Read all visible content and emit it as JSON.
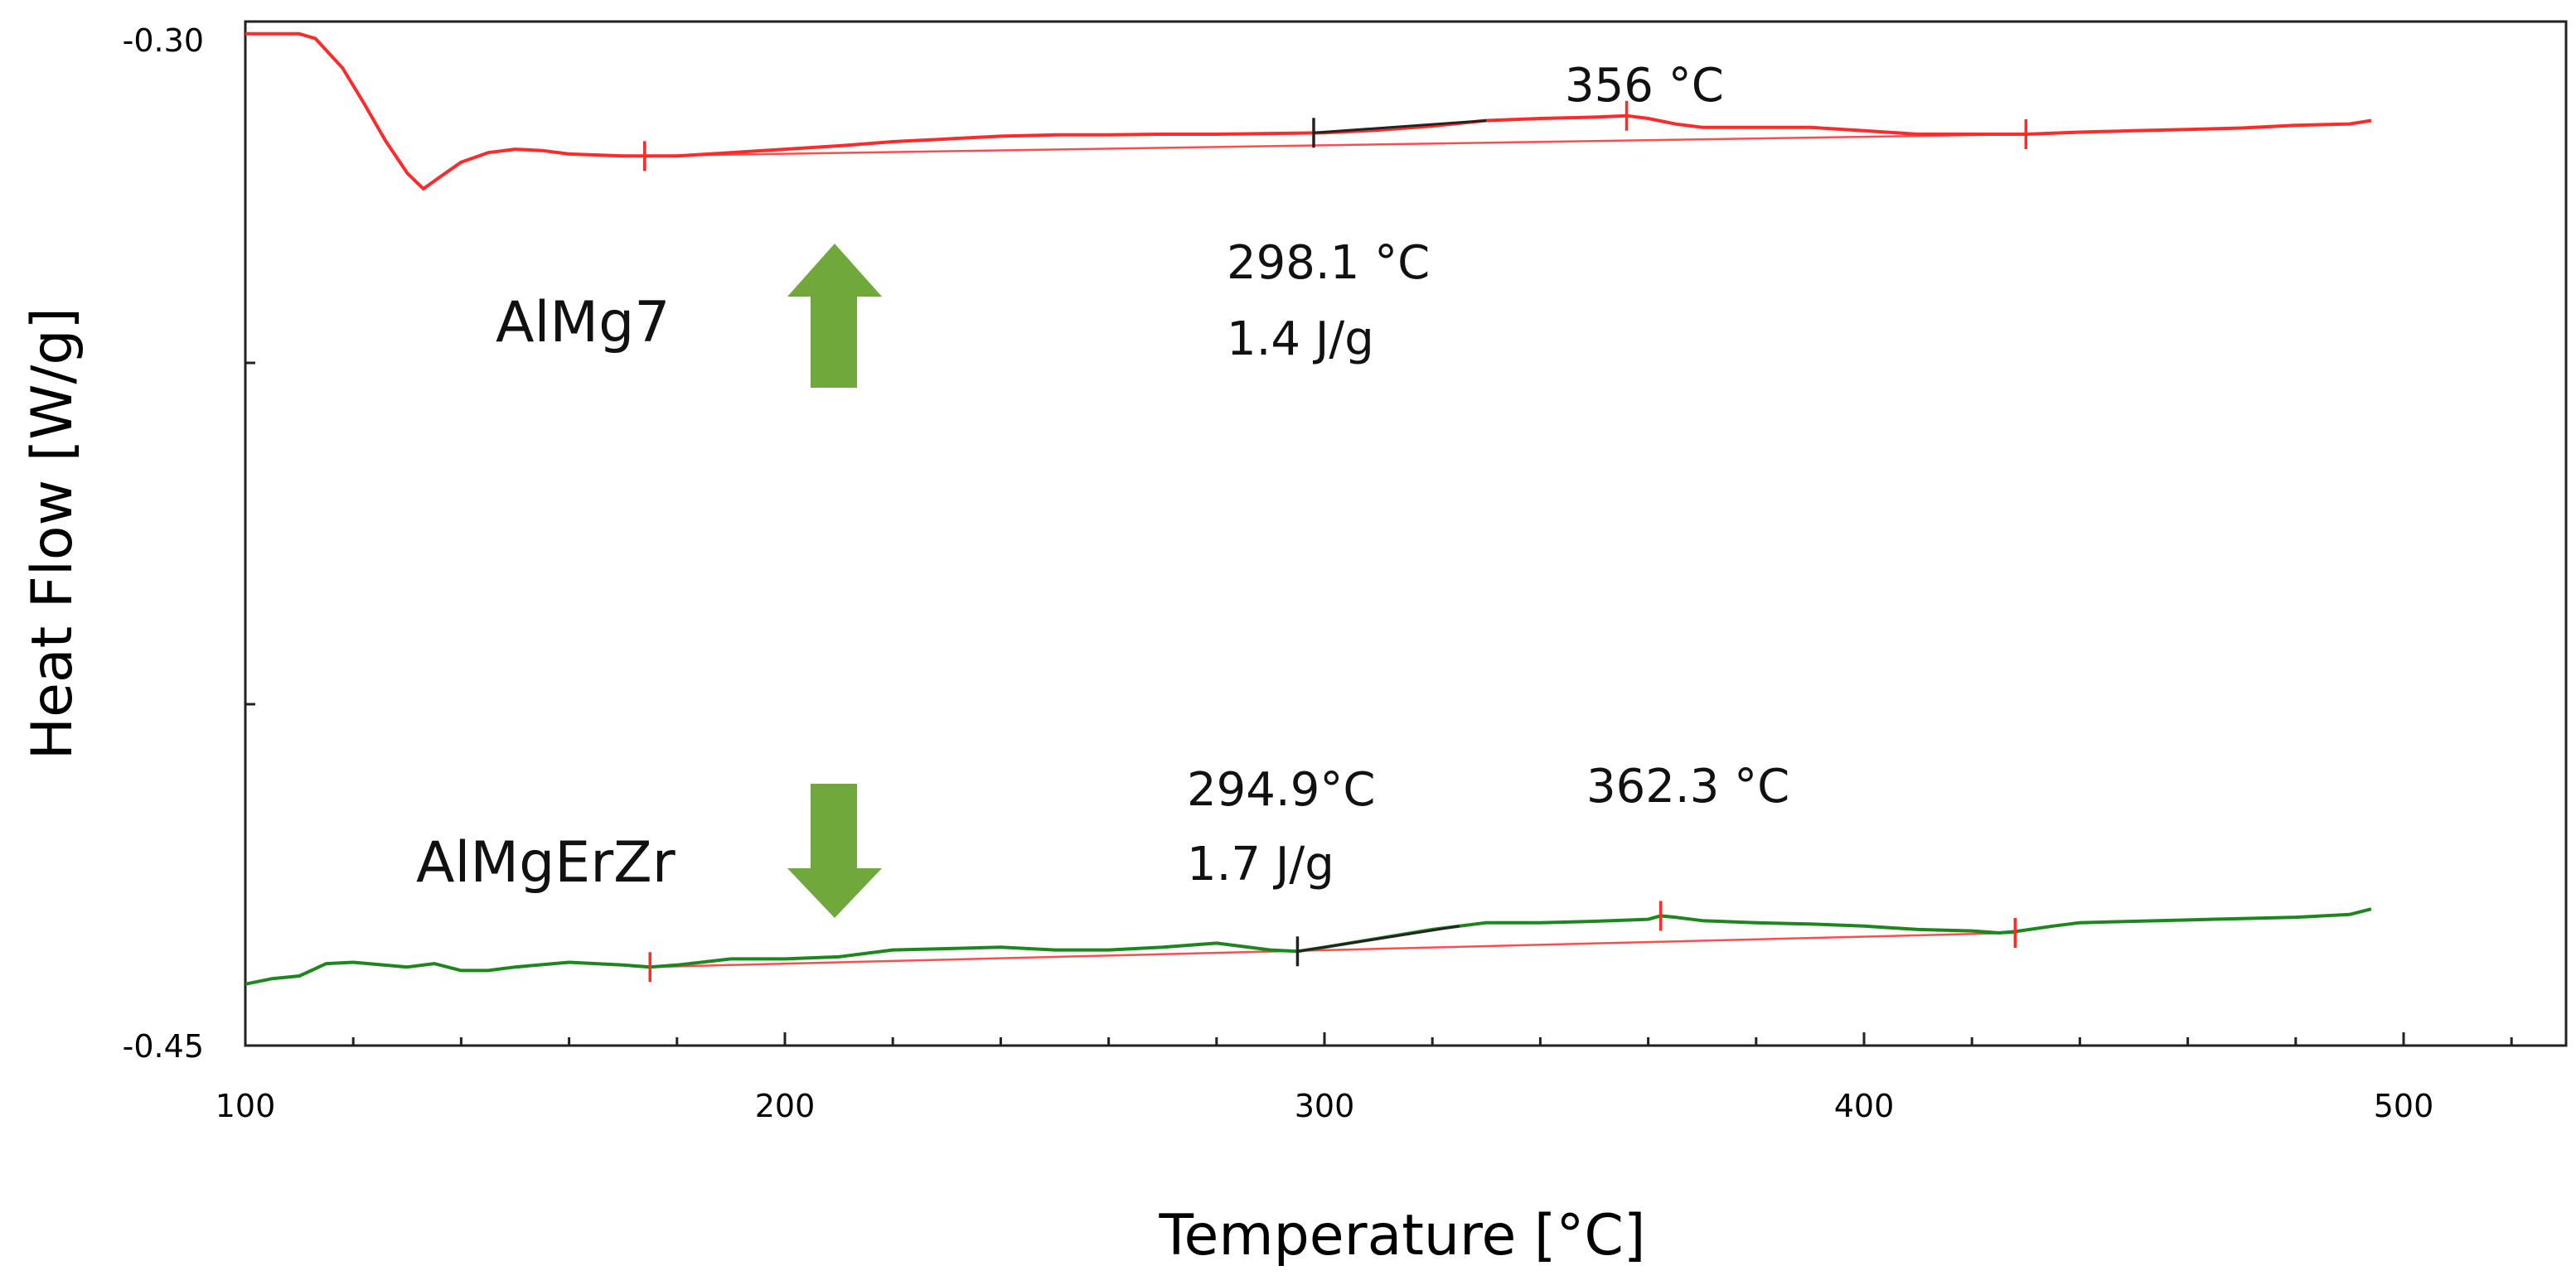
{
  "chart_data": {
    "type": "line",
    "xlabel": "Temperature [°C]",
    "ylabel": "Heat Flow [W/g]",
    "xlim": [
      100,
      530
    ],
    "ylim": [
      -0.45,
      -0.3
    ],
    "x_ticks": [
      "100",
      "200",
      "300",
      "400",
      "500"
    ],
    "y_ticks": [
      "-0.30",
      "-0.45"
    ],
    "grid": false,
    "series": [
      {
        "name": "AlMg7",
        "color": "#ff2a2a",
        "x": [
          100,
          110,
          113,
          118,
          122,
          126,
          130,
          133,
          136,
          140,
          145,
          150,
          155,
          160,
          170,
          180,
          190,
          200,
          210,
          220,
          230,
          240,
          250,
          260,
          270,
          280,
          290,
          300,
          310,
          320,
          330,
          340,
          350,
          356,
          360,
          365,
          370,
          380,
          390,
          400,
          410,
          420,
          430,
          440,
          450,
          460,
          470,
          480,
          490,
          494
        ],
        "y": [
          -0.3018,
          -0.3018,
          -0.3025,
          -0.3068,
          -0.312,
          -0.3175,
          -0.3222,
          -0.3245,
          -0.3228,
          -0.3206,
          -0.3192,
          -0.3187,
          -0.3189,
          -0.3194,
          -0.3197,
          -0.3197,
          -0.3192,
          -0.3187,
          -0.3182,
          -0.3176,
          -0.3172,
          -0.3168,
          -0.3166,
          -0.3166,
          -0.3165,
          -0.3165,
          -0.3164,
          -0.3163,
          -0.3159,
          -0.3153,
          -0.3145,
          -0.3142,
          -0.314,
          -0.3138,
          -0.3142,
          -0.315,
          -0.3155,
          -0.3155,
          -0.3155,
          -0.316,
          -0.3165,
          -0.3165,
          -0.3165,
          -0.3162,
          -0.316,
          -0.3158,
          -0.3156,
          -0.3152,
          -0.315,
          -0.3145
        ]
      },
      {
        "name": "AlMgErZr",
        "color": "#1e861e",
        "x": [
          100,
          105,
          110,
          115,
          120,
          130,
          135,
          140,
          145,
          150,
          160,
          170,
          175,
          180,
          190,
          200,
          210,
          220,
          230,
          240,
          250,
          260,
          270,
          280,
          285,
          290,
          295,
          300,
          310,
          320,
          330,
          340,
          350,
          360,
          362.3,
          365,
          370,
          380,
          390,
          400,
          410,
          420,
          425,
          428,
          435,
          440,
          450,
          460,
          470,
          480,
          490,
          494
        ],
        "y": [
          -0.441,
          -0.4402,
          -0.4398,
          -0.438,
          -0.4378,
          -0.4385,
          -0.438,
          -0.439,
          -0.439,
          -0.4385,
          -0.4378,
          -0.4382,
          -0.4385,
          -0.4382,
          -0.4373,
          -0.4373,
          -0.437,
          -0.436,
          -0.4358,
          -0.4356,
          -0.436,
          -0.436,
          -0.4356,
          -0.435,
          -0.4355,
          -0.436,
          -0.4362,
          -0.4356,
          -0.4343,
          -0.433,
          -0.432,
          -0.432,
          -0.4318,
          -0.4315,
          -0.431,
          -0.4312,
          -0.4317,
          -0.432,
          -0.4322,
          -0.4325,
          -0.433,
          -0.4332,
          -0.4335,
          -0.4333,
          -0.4325,
          -0.432,
          -0.4318,
          -0.4316,
          -0.4314,
          -0.4312,
          -0.4308,
          -0.43
        ]
      }
    ],
    "baselines": [
      {
        "color": "#ff4d4d",
        "x": [
          174,
          430
        ],
        "y": [
          -0.3197,
          -0.3165
        ]
      },
      {
        "color": "#ff4d4d",
        "x": [
          175,
          428
        ],
        "y": [
          -0.4385,
          -0.4335
        ]
      }
    ],
    "tangents": [
      {
        "color": "#222222",
        "x": [
          298,
          330
        ],
        "y": [
          -0.3163,
          -0.3145
        ]
      },
      {
        "color": "#222222",
        "x": [
          295,
          325
        ],
        "y": [
          -0.4362,
          -0.4325
        ]
      }
    ],
    "markers": [
      {
        "color": "#ff2a2a",
        "x": 174,
        "y": -0.3197
      },
      {
        "color": "#222222",
        "x": 298,
        "y": -0.3163
      },
      {
        "color": "#ff2a2a",
        "x": 356,
        "y": -0.3138
      },
      {
        "color": "#ff2a2a",
        "x": 430,
        "y": -0.3165
      },
      {
        "color": "#ff2a2a",
        "x": 175,
        "y": -0.4385
      },
      {
        "color": "#222222",
        "x": 295,
        "y": -0.4362
      },
      {
        "color": "#ff2a2a",
        "x": 362.3,
        "y": -0.431
      },
      {
        "color": "#ff2a2a",
        "x": 428,
        "y": -0.4335
      }
    ],
    "annotations": {
      "peak_almg7": "356 °C",
      "onset_almg7_temp": "298.1 °C",
      "onset_almg7_energy": "1.4 J/g",
      "onset_almgerzr_temp": "294.9°C",
      "onset_almgerzr_energy": "1.7 J/g",
      "peak_almgerzr": "362.3 °C"
    },
    "series_labels": {
      "almg7": "AlMg7",
      "almgerzr": "AlMgErZr"
    },
    "arrows": [
      {
        "direction": "up",
        "color": "#70a83c"
      },
      {
        "direction": "down",
        "color": "#70a83c"
      }
    ]
  }
}
